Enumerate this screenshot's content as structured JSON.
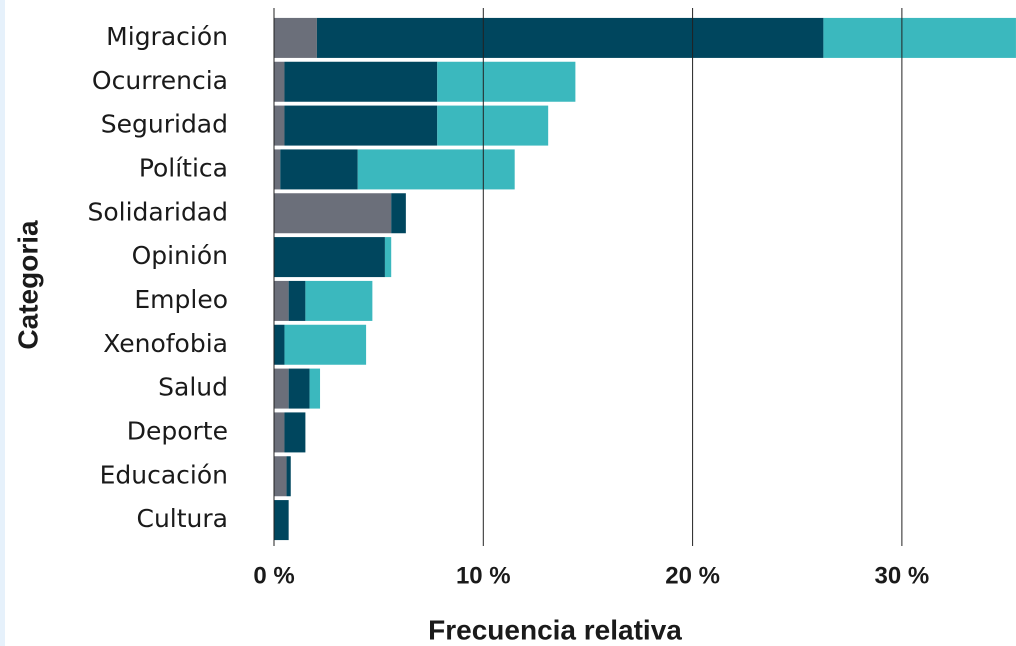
{
  "chart_data": {
    "type": "stacked_barh",
    "xlabel": "Frecuencia relativa",
    "ylabel": "Categoria",
    "categories": [
      "Migración",
      "Ocurrencia",
      "Seguridad",
      "Política",
      "Solidaridad",
      "Opinión",
      "Empleo",
      "Xenofobia",
      "Salud",
      "Deporte",
      "Educación",
      "Cultura"
    ],
    "series": [
      {
        "color": "#6b6f7a",
        "values": [
          2.05,
          0.5,
          0.5,
          0.3,
          5.6,
          0,
          0.7,
          0,
          0.7,
          0.5,
          0.6,
          0
        ]
      },
      {
        "color": "#00465e",
        "values": [
          24.2,
          7.3,
          7.3,
          3.7,
          0.7,
          5.3,
          0.8,
          0.5,
          1.0,
          1.0,
          0.2,
          0.7
        ]
      },
      {
        "color": "#3bb8be",
        "values": [
          9.2,
          6.6,
          5.3,
          7.5,
          0,
          0.3,
          3.2,
          3.9,
          0.5,
          0,
          0,
          0
        ]
      }
    ],
    "xlim": [
      0,
      35.5
    ],
    "xticks": [
      {
        "value": 0,
        "label": "0 %"
      },
      {
        "value": 10,
        "label": "10 %"
      },
      {
        "value": 20,
        "label": "20 %"
      },
      {
        "value": 30,
        "label": "30 %"
      }
    ],
    "grid": true
  }
}
